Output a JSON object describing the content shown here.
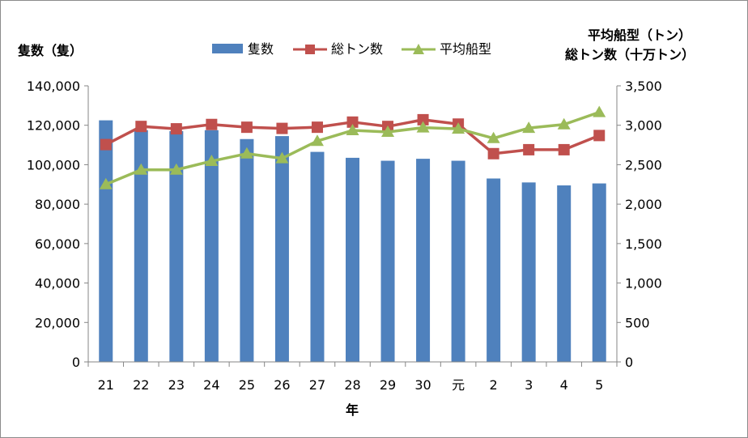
{
  "chart_data": {
    "type": "bar-line-combo",
    "categories": [
      "21",
      "22",
      "23",
      "24",
      "25",
      "26",
      "27",
      "28",
      "29",
      "30",
      "元",
      "2",
      "3",
      "4",
      "5"
    ],
    "x_axis_label": "年",
    "left_axis": {
      "label": "隻数（隻）",
      "range": [
        0,
        140000
      ],
      "ticks": [
        "0",
        "20,000",
        "40,000",
        "60,000",
        "80,000",
        "100,000",
        "120,000",
        "140,000"
      ]
    },
    "right_axis": {
      "label_line1": "平均船型（トン）",
      "label_line2": "総トン数（十万トン）",
      "range": [
        0,
        3500
      ],
      "ticks": [
        "0",
        "500",
        "1,000",
        "1,500",
        "2,000",
        "2,500",
        "3,000",
        "3,500"
      ]
    },
    "legend": [
      "隻数",
      "総トン数",
      "平均船型"
    ],
    "legend_position": "top",
    "grid": false,
    "series": [
      {
        "name": "隻数",
        "type": "bar",
        "axis": "left",
        "color": "#4F81BD",
        "values": [
          122500,
          117500,
          117000,
          117500,
          113000,
          114500,
          106500,
          103500,
          102000,
          103000,
          102000,
          93000,
          91000,
          89500,
          90500
        ]
      },
      {
        "name": "総トン数",
        "type": "line",
        "axis": "right",
        "color": "#C0504D",
        "marker": "square",
        "values": [
          2755,
          2985,
          2955,
          3010,
          2975,
          2960,
          2975,
          3040,
          2985,
          3070,
          3015,
          2640,
          2690,
          2690,
          2870
        ]
      },
      {
        "name": "平均船型",
        "type": "line",
        "axis": "right",
        "color": "#9BBB59",
        "marker": "triangle",
        "values": [
          2250,
          2435,
          2435,
          2545,
          2640,
          2580,
          2800,
          2935,
          2915,
          2970,
          2955,
          2835,
          2965,
          3010,
          3165
        ]
      }
    ]
  }
}
